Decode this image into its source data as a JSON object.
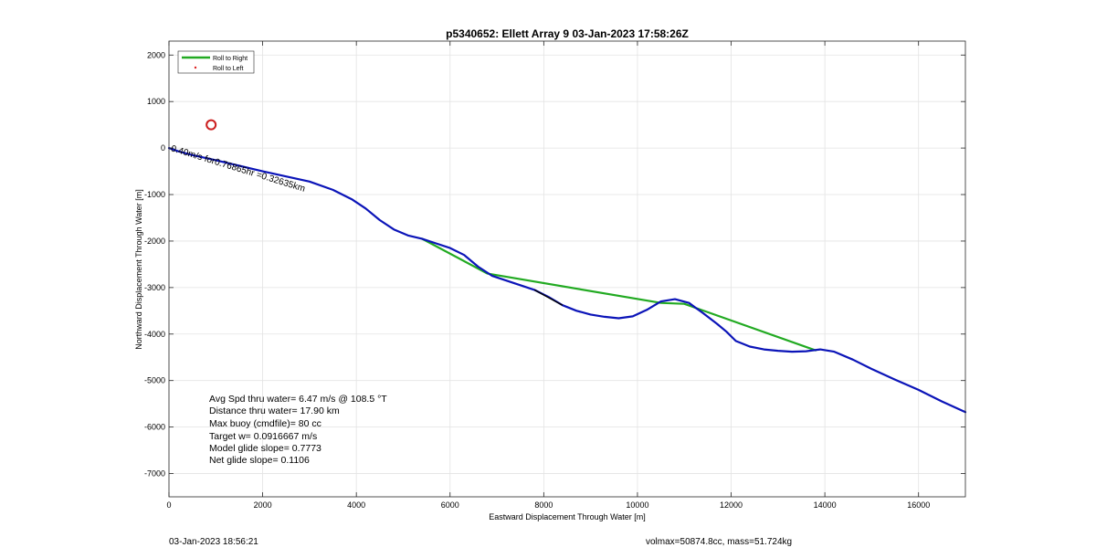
{
  "chart_data": {
    "type": "line",
    "title": "p5340652: Ellett Array 9 03-Jan-2023 17:58:26Z",
    "xlabel": "Eastward Displacement Through Water [m]",
    "ylabel": "Northward Displacement Through Water [m]",
    "xlim": [
      0,
      17000
    ],
    "ylim": [
      -7500,
      2300
    ],
    "xticks": [
      0,
      2000,
      4000,
      6000,
      8000,
      10000,
      12000,
      14000,
      16000
    ],
    "yticks": [
      2000,
      1000,
      0,
      -1000,
      -2000,
      -3000,
      -4000,
      -5000,
      -6000,
      -7000
    ],
    "grid": true,
    "legend_position": "top-left",
    "legend": [
      {
        "label": "Roll to Right",
        "color": "#22aa22",
        "style": "line"
      },
      {
        "label": "Roll to Left",
        "color": "#dd2222",
        "style": "dot"
      }
    ],
    "series": [
      {
        "color": "#0b14b8",
        "x": [
          0,
          200,
          500,
          1000,
          1500,
          2000,
          2500,
          3000,
          3500,
          3900,
          4200,
          4500,
          4800,
          5100,
          5400,
          5700,
          6000,
          6300,
          6600,
          6900,
          7200,
          7500,
          7800,
          8100,
          8400,
          8700,
          9000,
          9300,
          9600,
          9900,
          10200,
          10500,
          10800,
          11100,
          11400,
          11700,
          11900,
          12100,
          12400,
          12700,
          13000,
          13300,
          13600,
          13900,
          14200,
          14600,
          15000,
          15500,
          16000,
          16500,
          17000
        ],
        "y": [
          0,
          -70,
          -150,
          -260,
          -380,
          -500,
          -610,
          -720,
          -900,
          -1100,
          -1300,
          -1550,
          -1750,
          -1880,
          -1950,
          -2050,
          -2150,
          -2300,
          -2550,
          -2750,
          -2850,
          -2950,
          -3050,
          -3200,
          -3380,
          -3500,
          -3580,
          -3630,
          -3660,
          -3620,
          -3480,
          -3300,
          -3250,
          -3330,
          -3550,
          -3780,
          -3950,
          -4150,
          -4270,
          -4330,
          -4360,
          -4380,
          -4370,
          -4330,
          -4380,
          -4550,
          -4750,
          -4980,
          -5200,
          -5450,
          -5680
        ]
      },
      {
        "color": "#22aa22",
        "x": [
          5400,
          6800,
          10500,
          11000,
          13800
        ],
        "y": [
          -1950,
          -2700,
          -3330,
          -3350,
          -4350
        ]
      }
    ],
    "segments": [
      {
        "x": [
          7800,
          8400
        ],
        "y": [
          -3050,
          -3380
        ],
        "color": "#000000"
      }
    ],
    "markers": [
      {
        "x": 900,
        "y": 500,
        "shape": "circle",
        "color": "#cc1f1f"
      }
    ],
    "text_annotations": [
      {
        "text": "0.40m/s for0.76865hr =0.32635km",
        "x": 30,
        "y": 0,
        "rotation_deg": 17
      }
    ],
    "stats": [
      "Avg Spd thru water=  6.47 m/s @ 108.5 °T",
      "Distance thru water= 17.90 km",
      "Max buoy (cmdfile)= 80 cc",
      "Target w= 0.0916667 m/s",
      "Model glide slope= 0.7773",
      "Net glide slope= 0.1106"
    ]
  },
  "footer": {
    "timestamp": "03-Jan-2023 18:56:21",
    "volume_mass": "volmax=50874.8cc, mass=51.724kg"
  }
}
